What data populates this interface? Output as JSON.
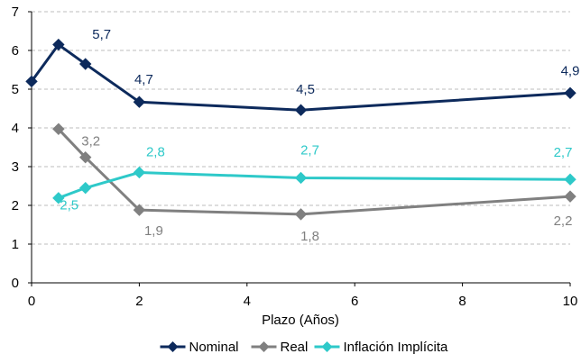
{
  "chart_data": {
    "type": "line",
    "title": "",
    "xlabel": "Plazo (Años)",
    "ylabel": "",
    "xlim": [
      0,
      10
    ],
    "ylim": [
      0,
      7
    ],
    "x_ticks": [
      0,
      2,
      4,
      6,
      8,
      10
    ],
    "y_ticks": [
      0,
      1,
      2,
      3,
      4,
      5,
      6,
      7
    ],
    "grid": "horizontal-dashed",
    "legend_position": "bottom",
    "series": [
      {
        "name": "Nominal",
        "color": "#0d2a5c",
        "label_color": "#0d2a5c",
        "marker": "diamond",
        "points": [
          {
            "x": 0,
            "y": 5.2
          },
          {
            "x": 0.5,
            "y": 6.15
          },
          {
            "x": 1,
            "y": 5.65,
            "label": "5,7"
          },
          {
            "x": 2,
            "y": 4.67,
            "label": "4,7"
          },
          {
            "x": 5,
            "y": 4.46,
            "label": "4,5"
          },
          {
            "x": 10,
            "y": 4.9,
            "label": "4,9"
          }
        ]
      },
      {
        "name": "Real",
        "color": "#808080",
        "label_color": "#808080",
        "marker": "diamond",
        "points": [
          {
            "x": 0.5,
            "y": 3.97
          },
          {
            "x": 1,
            "y": 3.24,
            "label": "3,2"
          },
          {
            "x": 2,
            "y": 1.88,
            "label": "1,9"
          },
          {
            "x": 5,
            "y": 1.77,
            "label": "1,8"
          },
          {
            "x": 10,
            "y": 2.23,
            "label": "2,2"
          }
        ]
      },
      {
        "name": "Inflación Implícita",
        "color": "#2ec9c9",
        "label_color": "#2ec9c9",
        "marker": "diamond",
        "points": [
          {
            "x": 0.5,
            "y": 2.19
          },
          {
            "x": 1,
            "y": 2.45,
            "label": "2,5"
          },
          {
            "x": 2,
            "y": 2.85,
            "label": "2,8"
          },
          {
            "x": 5,
            "y": 2.71,
            "label": "2,7"
          },
          {
            "x": 10,
            "y": 2.67,
            "label": "2,7"
          }
        ]
      }
    ]
  }
}
